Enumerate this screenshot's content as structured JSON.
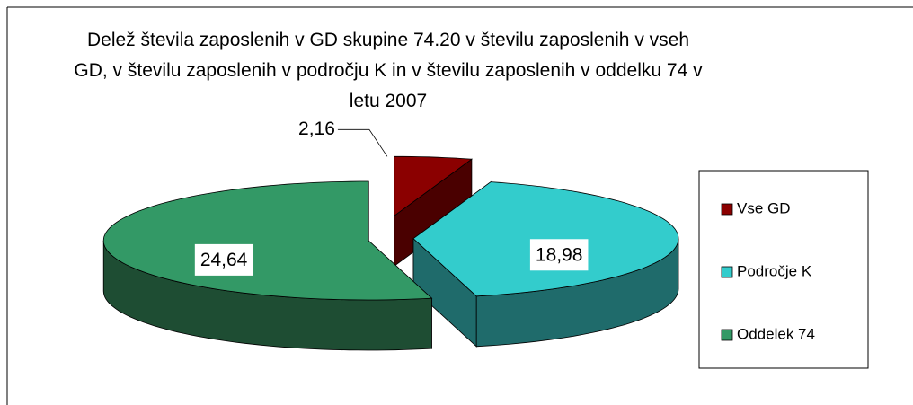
{
  "chart_data": {
    "type": "pie",
    "title": "Delež števila zaposlenih v GD skupine 74.20 v številu zaposlenih v vseh GD, v številu zaposlenih v področju K in v številu zaposlenih v oddelku 74 v letu 2007",
    "categories": [
      "Vse GD",
      "Področje K",
      "Oddelek 74"
    ],
    "values": [
      2.16,
      18.98,
      24.64
    ],
    "value_labels": [
      "2,16",
      "18,98",
      "24,64"
    ],
    "colors": [
      "#8b0000",
      "#33cccc",
      "#339966"
    ],
    "side_colors": [
      "#4a0000",
      "#1f6b6b",
      "#1e4d33"
    ],
    "legend": "right"
  }
}
